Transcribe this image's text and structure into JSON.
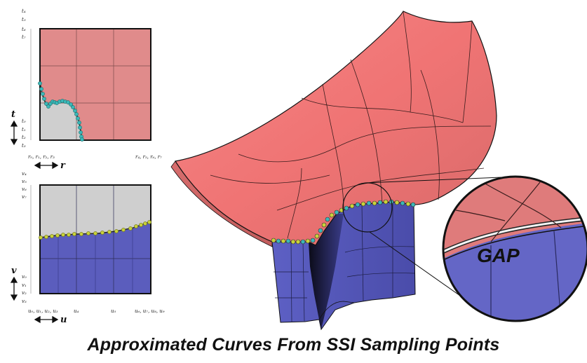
{
  "top_param": {
    "t_labels_top": [
      "t₄",
      "t₅",
      "t₆",
      "t₇"
    ],
    "t_labels_bottom": [
      "t₀",
      "t₁",
      "t₂",
      "t₃"
    ],
    "axis_letter": "t",
    "r_labels_left": "r₀, r₁, r₂, r₃",
    "r_labels_right": "r₄, r₅, r₆, r₇",
    "r_axis_letter": "r"
  },
  "bottom_param": {
    "v_labels_top": [
      "v₄",
      "v₅",
      "v₆",
      "v₇"
    ],
    "v_labels_bottom": [
      "v₀",
      "v₁",
      "v₂",
      "v₃"
    ],
    "axis_letter": "v",
    "u_label_left": "u₀, u₁, u₂, u₃",
    "u_label_mid1": "u₄",
    "u_label_mid2": "u₅",
    "u_label_right": "u₆, u₇, u₈, u₉",
    "u_axis_letter": "u"
  },
  "zoom": {
    "label": "GAP"
  },
  "caption": "Approximated Curves From SSI Sampling Points",
  "colors": {
    "red_surface": "#f07a7a",
    "red_param": "#e08b8b",
    "blue_surface": "#5a5cc0",
    "blue_param": "#5b5dbd",
    "gray_region": "#d0d0d0",
    "cyan_point": "#3bb8b8",
    "yellow_point": "#c8d23a"
  }
}
